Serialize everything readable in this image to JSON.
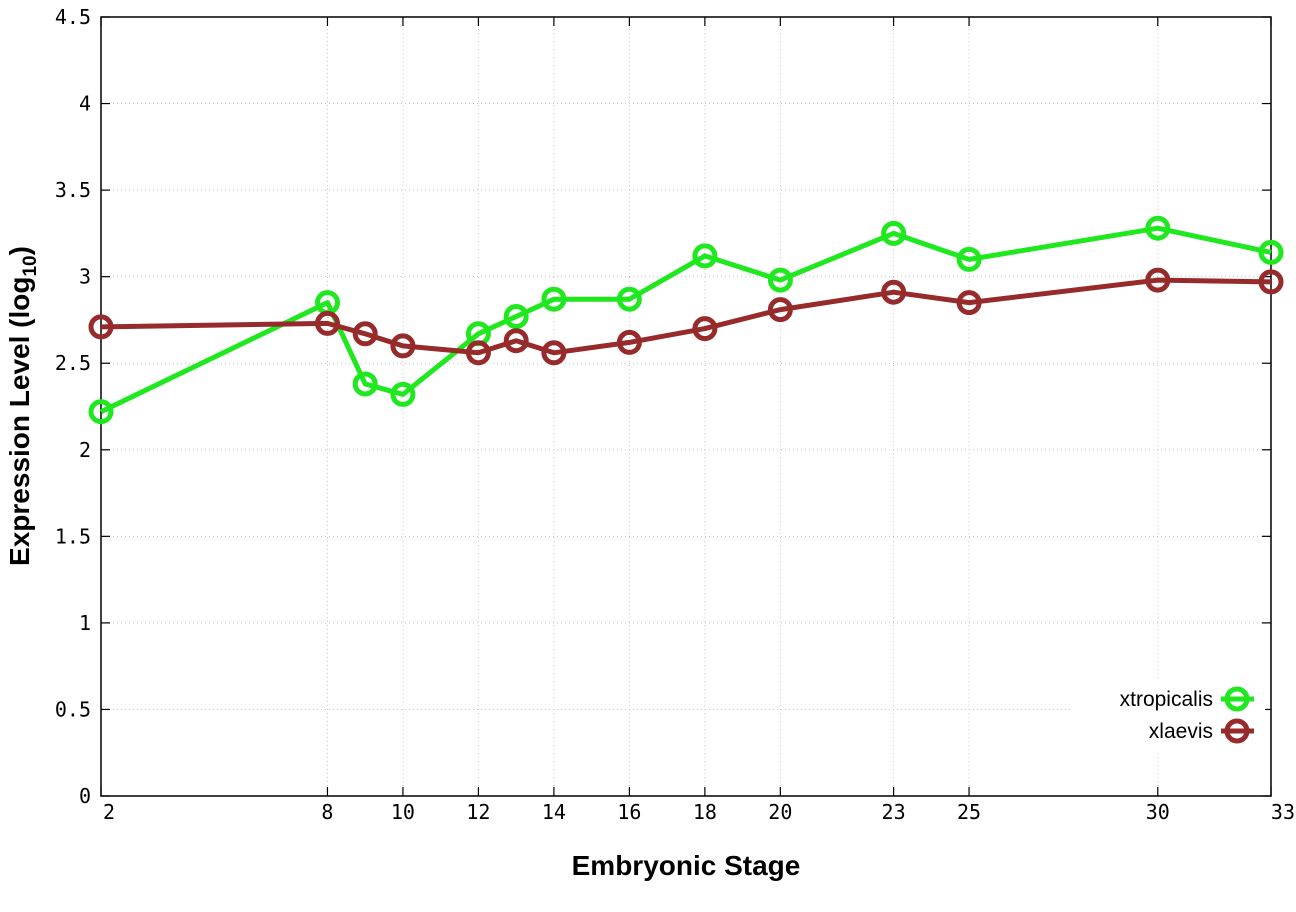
{
  "chart_data": {
    "type": "line",
    "title": "",
    "xlabel": "Embryonic Stage",
    "ylabel_main": "Expression Level (log",
    "ylabel_sub": "10",
    "ylabel_close": ")",
    "x": [
      2,
      8,
      9,
      10,
      12,
      13,
      14,
      16,
      18,
      20,
      23,
      25,
      30,
      33
    ],
    "x_tick_labels": [
      "2",
      "8",
      "10",
      "12",
      "14",
      "16",
      "18",
      "20",
      "23",
      "25",
      "30",
      "33"
    ],
    "y_tick_labels": [
      "0",
      "0.5",
      "1",
      "1.5",
      "2",
      "2.5",
      "3",
      "3.5",
      "4",
      "4.5"
    ],
    "xlim": [
      2,
      33
    ],
    "ylim": [
      0,
      4.5
    ],
    "grid": true,
    "legend_position": "bottom-right",
    "series": [
      {
        "name": "xtropicalis",
        "color": "#1fe81f",
        "values": [
          2.22,
          2.85,
          2.38,
          2.32,
          2.67,
          2.77,
          2.87,
          2.87,
          3.12,
          2.98,
          3.25,
          3.1,
          3.28,
          3.14
        ]
      },
      {
        "name": "xlaevis",
        "color": "#972b2b",
        "values": [
          2.71,
          2.73,
          2.67,
          2.6,
          2.56,
          2.63,
          2.56,
          2.62,
          2.7,
          2.81,
          2.91,
          2.85,
          2.98,
          2.97
        ]
      }
    ]
  }
}
